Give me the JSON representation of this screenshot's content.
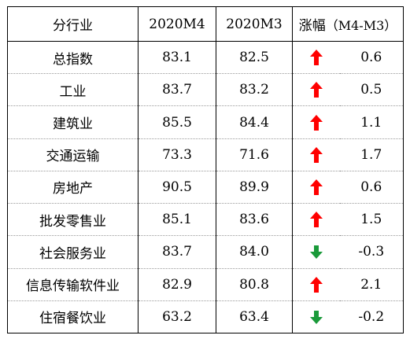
{
  "header": {
    "col_name": "分行业",
    "col_m4": "2020M4",
    "col_m3": "2020M3",
    "col_change_prefix": "涨幅",
    "col_change_suffix": "（M4-M3）"
  },
  "colors": {
    "up": "#ff0000",
    "down": "#1a9a3a"
  },
  "rows": [
    {
      "name": "总指数",
      "m4": "83.1",
      "m3": "82.5",
      "trend": "up",
      "trend_icon": "red-up-arrow-icon",
      "diff": "0.6"
    },
    {
      "name": "工业",
      "m4": "83.7",
      "m3": "83.2",
      "trend": "up",
      "trend_icon": "red-up-arrow-icon",
      "diff": "0.5"
    },
    {
      "name": "建筑业",
      "m4": "85.5",
      "m3": "84.4",
      "trend": "up",
      "trend_icon": "red-up-arrow-icon",
      "diff": "1.1"
    },
    {
      "name": "交通运输",
      "m4": "73.3",
      "m3": "71.6",
      "trend": "up",
      "trend_icon": "red-up-arrow-icon",
      "diff": "1.7"
    },
    {
      "name": "房地产",
      "m4": "90.5",
      "m3": "89.9",
      "trend": "up",
      "trend_icon": "red-up-arrow-icon",
      "diff": "0.6"
    },
    {
      "name": "批发零售业",
      "m4": "85.1",
      "m3": "83.6",
      "trend": "up",
      "trend_icon": "red-up-arrow-icon",
      "diff": "1.5"
    },
    {
      "name": "社会服务业",
      "m4": "83.7",
      "m3": "84.0",
      "trend": "down",
      "trend_icon": "green-down-arrow-icon",
      "diff": "-0.3"
    },
    {
      "name": "信息传输软件业",
      "m4": "82.9",
      "m3": "80.8",
      "trend": "up",
      "trend_icon": "red-up-arrow-icon",
      "diff": "2.1"
    },
    {
      "name": "住宿餐饮业",
      "m4": "63.2",
      "m3": "63.4",
      "trend": "down",
      "trend_icon": "green-down-arrow-icon",
      "diff": "-0.2"
    }
  ]
}
